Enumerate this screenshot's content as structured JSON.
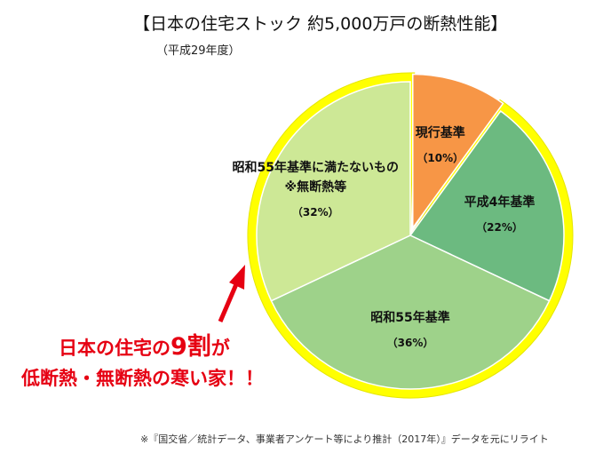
{
  "title": "【日本の住宅ストック 約5,000万戸の断熱性能】",
  "subtitle": "（平成29年度）",
  "chart_data": {
    "type": "pie",
    "title": "【日本の住宅ストック 約5,000万戸の断熱性能】",
    "subtitle": "（平成29年度）",
    "start_angle_deg": 0,
    "direction": "clockwise",
    "slices": [
      {
        "label": "現行基準",
        "value": 10,
        "pct_label": "（10%）",
        "color": "#f79646",
        "exploded": true
      },
      {
        "label": "平成4年基準",
        "value": 22,
        "pct_label": "（22%）",
        "color": "#6cba80",
        "exploded": false
      },
      {
        "label": "昭和55年基準",
        "value": 36,
        "pct_label": "（36%）",
        "color": "#9ed28a",
        "exploded": false
      },
      {
        "label": "昭和55年基準に満たないもの",
        "label_line2": "※無断熱等",
        "value": 32,
        "pct_label": "（32%）",
        "color": "#cde896",
        "exploded": false
      }
    ],
    "highlight": {
      "color": "#ffff00",
      "slices": [
        "平成4年基準",
        "昭和55年基準",
        "昭和55年基準に満たないもの"
      ]
    }
  },
  "callout": {
    "line1_prefix": "日本の住宅の",
    "line1_emph": "9割",
    "line1_suffix": "が",
    "line2": "低断熱・無断熱の寒い家！！",
    "color": "#e60012"
  },
  "footnote": "※『国交省／統計データ、事業者アンケート等により推計（2017年）』データを元にリライト"
}
